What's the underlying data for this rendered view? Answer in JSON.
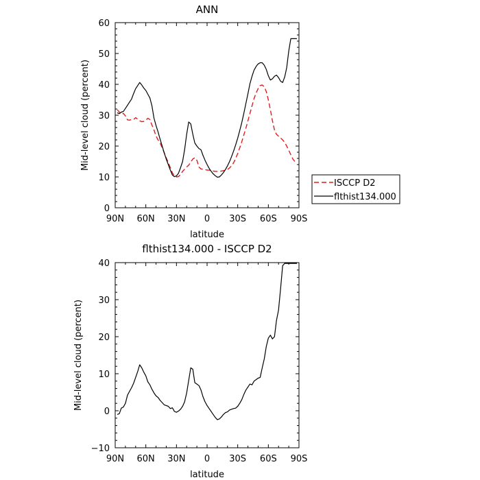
{
  "chart_data": [
    {
      "type": "line",
      "title": "ANN",
      "xlabel": "latitude",
      "ylabel": "Mid-level cloud (percent)",
      "xlim": [
        90,
        -90
      ],
      "ylim": [
        0,
        60
      ],
      "xticks": [
        90,
        60,
        30,
        0,
        -30,
        -60,
        -90
      ],
      "xtick_labels": [
        "90N",
        "60N",
        "30N",
        "0",
        "30S",
        "60S",
        "90S"
      ],
      "yticks": [
        0,
        10,
        20,
        30,
        40,
        50,
        60
      ],
      "ytick_labels": [
        "0",
        "10",
        "20",
        "30",
        "40",
        "50",
        "60"
      ],
      "grid": false,
      "legend": "right, outside plot, lower middle",
      "series": [
        {
          "name": "ISCCP D2",
          "color": "#e31a1c",
          "dash": "dashed",
          "x": [
            88,
            86,
            84,
            82,
            80,
            78,
            76,
            74,
            72,
            70,
            68,
            66,
            64,
            62,
            60,
            58,
            56,
            54,
            52,
            50,
            48,
            46,
            44,
            42,
            40,
            38,
            36,
            34,
            32,
            30,
            28,
            26,
            24,
            22,
            20,
            18,
            16,
            14,
            12,
            10,
            8,
            6,
            4,
            2,
            0,
            -2,
            -4,
            -6,
            -8,
            -10,
            -12,
            -14,
            -16,
            -18,
            -20,
            -22,
            -24,
            -26,
            -28,
            -30,
            -32,
            -34,
            -36,
            -38,
            -40,
            -42,
            -44,
            -46,
            -48,
            -50,
            -52,
            -54,
            -56,
            -58,
            -60,
            -62,
            -64,
            -66,
            -68,
            -70,
            -72,
            -74,
            -76,
            -78,
            -80,
            -82,
            -84,
            -86,
            -88
          ],
          "y": [
            31.8,
            31.0,
            30.3,
            30.6,
            29.8,
            28.5,
            28.4,
            28.6,
            28.6,
            29.2,
            28.7,
            28.2,
            27.9,
            28.0,
            28.4,
            29.0,
            28.6,
            26.8,
            25.2,
            23.2,
            22.0,
            21.0,
            19.5,
            17.8,
            16.2,
            14.6,
            13.0,
            11.3,
            10.3,
            10.0,
            10.1,
            10.8,
            11.8,
            12.5,
            13.2,
            13.8,
            14.8,
            15.8,
            16.2,
            15.4,
            13.2,
            12.6,
            12.5,
            12.4,
            12.2,
            12.2,
            12.0,
            11.9,
            11.8,
            11.8,
            11.8,
            11.9,
            12.0,
            12.2,
            12.4,
            12.9,
            13.6,
            14.6,
            16.0,
            17.6,
            19.4,
            21.4,
            23.6,
            25.8,
            28.2,
            30.6,
            33.0,
            35.4,
            37.2,
            38.6,
            39.6,
            39.8,
            39.2,
            37.6,
            35.0,
            31.8,
            28.2,
            25.2,
            23.8,
            23.2,
            22.6,
            22.0,
            21.2,
            20.0,
            18.6,
            17.2,
            15.8,
            15.0,
            14.6
          ]
        },
        {
          "name": "flthist134.000",
          "color": "#000000",
          "dash": "solid",
          "x": [
            88,
            86,
            84,
            82,
            80,
            78,
            76,
            74,
            72,
            70,
            68,
            66,
            64,
            62,
            60,
            58,
            56,
            54,
            52,
            50,
            48,
            46,
            44,
            42,
            40,
            38,
            36,
            34,
            32,
            30,
            28,
            26,
            24,
            22,
            20,
            18,
            16,
            14,
            12,
            10,
            8,
            6,
            4,
            2,
            0,
            -2,
            -4,
            -6,
            -8,
            -10,
            -12,
            -14,
            -16,
            -18,
            -20,
            -22,
            -24,
            -26,
            -28,
            -30,
            -32,
            -34,
            -36,
            -38,
            -40,
            -42,
            -44,
            -46,
            -48,
            -50,
            -52,
            -54,
            -56,
            -58,
            -60,
            -62,
            -64,
            -66,
            -68,
            -70,
            -72,
            -74,
            -76,
            -78,
            -80,
            -82,
            -84,
            -86,
            -88
          ],
          "y": [
            30.8,
            30.5,
            31.0,
            31.2,
            32.2,
            33.2,
            34.2,
            35.2,
            37.0,
            38.6,
            39.6,
            40.6,
            39.8,
            38.8,
            38.0,
            36.8,
            35.6,
            33.0,
            29.0,
            26.6,
            24.6,
            22.2,
            20.0,
            17.8,
            15.8,
            14.0,
            12.2,
            10.6,
            10.1,
            10.3,
            11.2,
            13.0,
            15.0,
            18.8,
            23.8,
            27.8,
            27.2,
            23.8,
            21.0,
            20.0,
            19.2,
            18.8,
            17.0,
            15.4,
            14.0,
            12.8,
            11.8,
            11.0,
            10.4,
            9.9,
            10.0,
            10.6,
            11.4,
            12.4,
            13.6,
            15.0,
            16.6,
            18.4,
            20.4,
            22.6,
            25.0,
            27.6,
            30.6,
            33.8,
            37.0,
            40.2,
            42.6,
            44.6,
            45.8,
            46.6,
            47.0,
            47.0,
            46.2,
            44.8,
            42.8,
            41.4,
            41.8,
            42.6,
            43.0,
            42.2,
            41.0,
            40.6,
            42.4,
            45.4,
            50.8,
            54.8,
            54.8,
            54.8,
            54.8
          ]
        }
      ]
    },
    {
      "type": "line",
      "title": "flthist134.000 - ISCCP D2",
      "xlabel": "latitude",
      "ylabel": "Mid-level cloud (percent)",
      "xlim": [
        90,
        -90
      ],
      "ylim": [
        -10,
        40
      ],
      "xticks": [
        90,
        60,
        30,
        0,
        -30,
        -60,
        -90
      ],
      "xtick_labels": [
        "90N",
        "60N",
        "30N",
        "0",
        "30S",
        "60S",
        "90S"
      ],
      "yticks": [
        -10,
        0,
        10,
        20,
        30,
        40
      ],
      "ytick_labels": [
        "−10",
        "0",
        "10",
        "20",
        "30",
        "40"
      ],
      "grid": false,
      "series": [
        {
          "color": "#000000",
          "dash": "solid",
          "x": [
            88,
            86,
            84,
            82,
            80,
            78,
            76,
            74,
            72,
            70,
            68,
            66,
            64,
            62,
            60,
            58,
            56,
            54,
            52,
            50,
            48,
            46,
            44,
            42,
            40,
            38,
            36,
            34,
            32,
            30,
            28,
            26,
            24,
            22,
            20,
            18,
            16,
            14,
            12,
            10,
            8,
            6,
            4,
            2,
            0,
            -2,
            -4,
            -6,
            -8,
            -10,
            -12,
            -14,
            -16,
            -18,
            -20,
            -22,
            -24,
            -26,
            -28,
            -30,
            -32,
            -34,
            -36,
            -38,
            -40,
            -42,
            -44,
            -46,
            -48,
            -50,
            -52,
            -54,
            -56,
            -58,
            -60,
            -62,
            -64,
            -66,
            -68,
            -70,
            -72,
            -74,
            -76,
            -78,
            -80,
            -82,
            -84,
            -86,
            -88
          ],
          "y": [
            -1.0,
            -0.8,
            0.7,
            1.0,
            2.0,
            4.2,
            5.2,
            6.2,
            7.4,
            9.0,
            10.6,
            12.4,
            11.6,
            10.4,
            9.4,
            7.8,
            7.0,
            5.8,
            4.8,
            4.0,
            3.6,
            2.8,
            2.2,
            1.6,
            1.4,
            1.2,
            0.6,
            0.8,
            -0.2,
            -0.4,
            -0.1,
            0.4,
            1.2,
            2.4,
            4.8,
            8.2,
            11.6,
            11.2,
            7.6,
            7.2,
            6.8,
            5.6,
            3.8,
            2.4,
            1.4,
            0.6,
            -0.2,
            -1.0,
            -1.8,
            -2.4,
            -2.2,
            -1.7,
            -1.0,
            -0.5,
            -0.3,
            0.2,
            0.4,
            0.6,
            0.7,
            1.2,
            2.0,
            3.0,
            4.4,
            5.6,
            6.4,
            7.2,
            7.0,
            8.0,
            8.4,
            8.8,
            9.0,
            11.6,
            14.0,
            17.4,
            19.6,
            20.4,
            19.4,
            20.0,
            24.4,
            27.2,
            33.0,
            39.2,
            39.8,
            39.8,
            39.8,
            39.8,
            39.8,
            39.8,
            39.8
          ]
        }
      ]
    }
  ]
}
